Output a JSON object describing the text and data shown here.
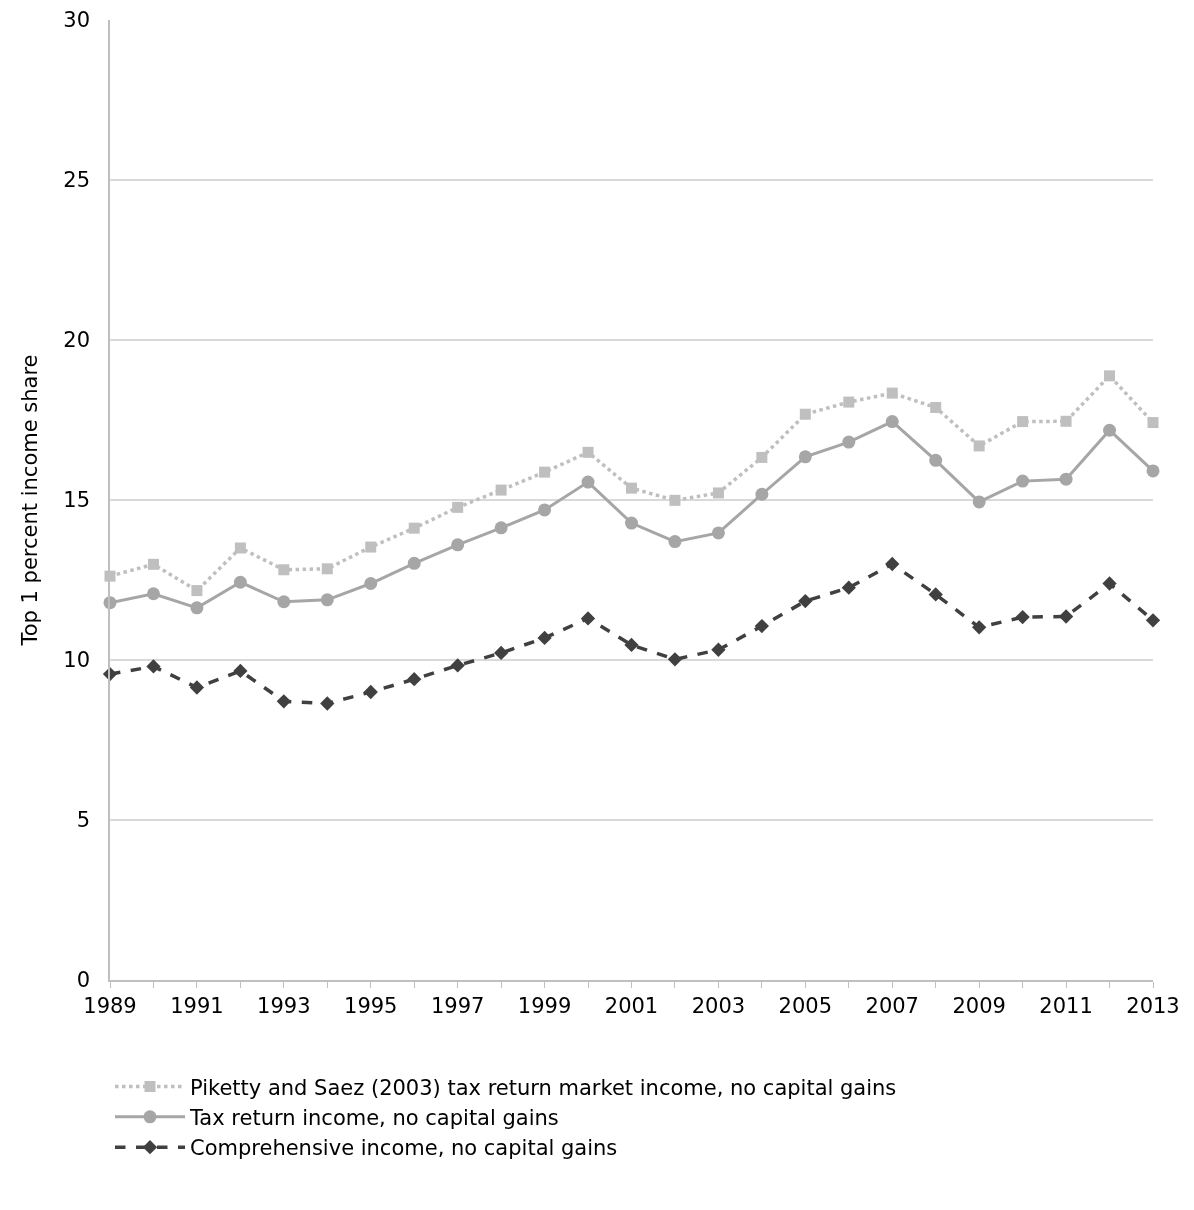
{
  "chart_data": {
    "type": "line",
    "ylabel": "Top 1 percent income share",
    "x": [
      1989,
      1990,
      1991,
      1992,
      1993,
      1994,
      1995,
      1996,
      1997,
      1998,
      1999,
      2000,
      2001,
      2002,
      2003,
      2004,
      2005,
      2006,
      2007,
      2008,
      2009,
      2010,
      2011,
      2012,
      2013
    ],
    "series": [
      {
        "name": "Piketty and Saez (2003) tax return market income, no capital gains",
        "color": "#bfbfbf",
        "marker": "square",
        "line_style": "dotted",
        "values": [
          12.62,
          12.99,
          12.17,
          13.5,
          12.82,
          12.85,
          13.53,
          14.12,
          14.77,
          15.31,
          15.87,
          16.49,
          15.37,
          14.99,
          15.22,
          16.33,
          17.68,
          18.06,
          18.34,
          17.89,
          16.69,
          17.45,
          17.46,
          18.88,
          17.42
        ]
      },
      {
        "name": "Tax return income, no capital gains",
        "color": "#a6a6a6",
        "marker": "circle",
        "line_style": "solid",
        "values": [
          11.79,
          12.07,
          11.63,
          12.43,
          11.82,
          11.88,
          12.39,
          13.02,
          13.6,
          14.13,
          14.69,
          15.56,
          14.28,
          13.7,
          13.97,
          15.18,
          16.35,
          16.81,
          17.45,
          16.24,
          14.94,
          15.59,
          15.65,
          17.18,
          15.91
        ]
      },
      {
        "name": "Comprehensive income, no capital gains",
        "color": "#404040",
        "marker": "diamond",
        "line_style": "dashed",
        "values": [
          9.56,
          9.8,
          9.14,
          9.66,
          8.71,
          8.64,
          9.0,
          9.4,
          9.83,
          10.22,
          10.69,
          11.3,
          10.47,
          10.02,
          10.32,
          11.06,
          11.84,
          12.26,
          13.0,
          12.05,
          11.02,
          11.34,
          11.36,
          12.39,
          11.24
        ]
      }
    ],
    "xlim": [
      1989,
      2013
    ],
    "xticks": [
      1989,
      1991,
      1993,
      1995,
      1997,
      1999,
      2001,
      2003,
      2005,
      2007,
      2009,
      2011,
      2013
    ],
    "ylim": [
      0,
      30
    ],
    "yticks": [
      0,
      5,
      10,
      15,
      20,
      25,
      30
    ],
    "grid": "y",
    "legend": "bottom"
  }
}
